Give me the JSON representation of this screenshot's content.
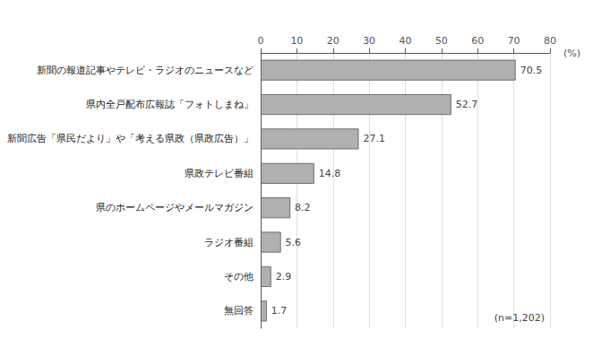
{
  "chart_data": {
    "type": "bar",
    "orientation": "horizontal",
    "categories": [
      "新聞の報道記事やテレビ・ラジオのニュースなど",
      "県内全戸配布広報誌「フォトしまね」",
      "新聞広告「県民だより」や「考える県政（県政広告）」",
      "県政テレビ番組",
      "県のホームページやメールマガジン",
      "ラジオ番組",
      "その他",
      "無回答"
    ],
    "values": [
      70.5,
      52.7,
      27.1,
      14.8,
      8.2,
      5.6,
      2.9,
      1.7
    ],
    "color": "#b0b0b0",
    "xlabel": "(%)",
    "annotation": "(n=1,202)",
    "xlim": [
      0,
      80
    ],
    "xticks": [
      0,
      10,
      20,
      30,
      40,
      50,
      60,
      70,
      80
    ],
    "grid": true,
    "data_labels": true
  }
}
